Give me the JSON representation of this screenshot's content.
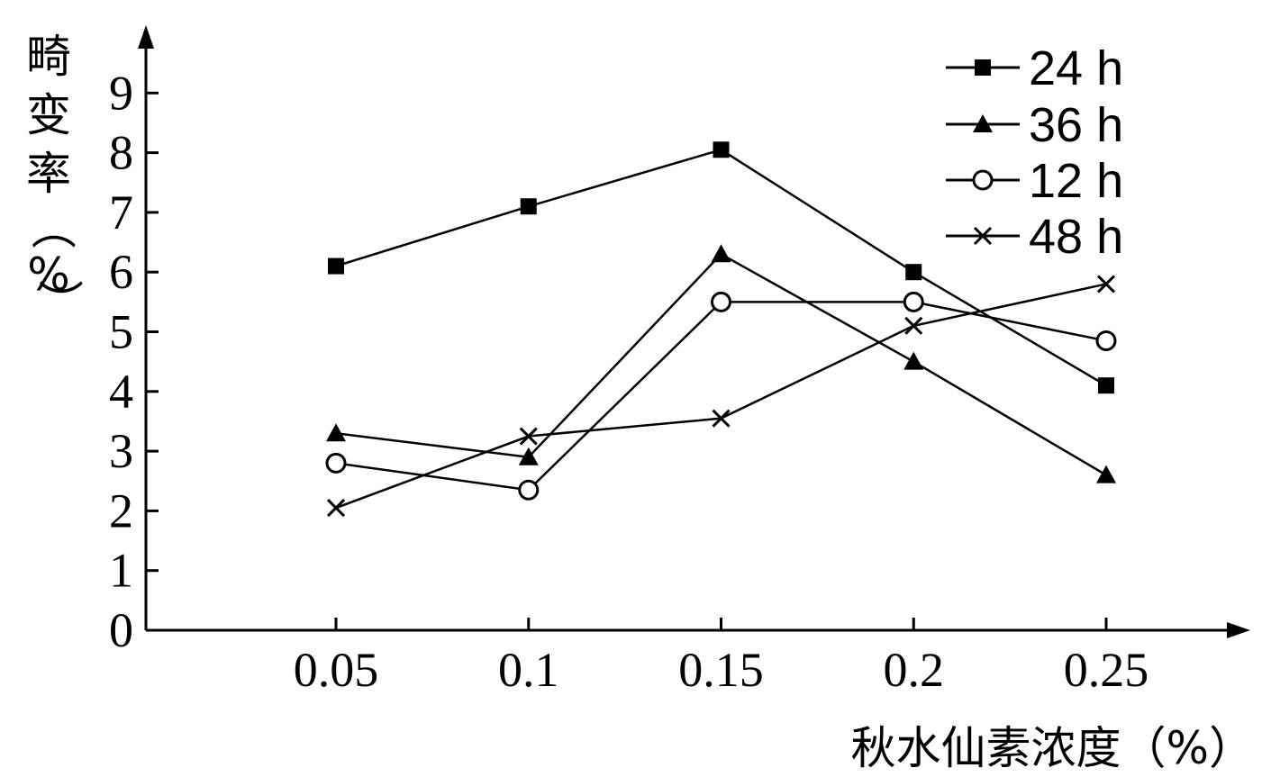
{
  "chart_data": {
    "type": "line",
    "title": "",
    "ylabel": "畸变率（%）",
    "ylabel_chars": [
      "畸",
      "变",
      "率",
      "（",
      "%",
      "）"
    ],
    "xlabel": "秋水仙素浓度（%）",
    "x": [
      0.05,
      0.1,
      0.15,
      0.2,
      0.25
    ],
    "x_tick_labels": [
      "0.05",
      "0.1",
      "0.15",
      "0.2",
      "0.25"
    ],
    "x_range": [
      0,
      0.28
    ],
    "ylim": [
      0,
      9.5
    ],
    "y_ticks": [
      0,
      1,
      2,
      3,
      4,
      5,
      6,
      7,
      8,
      9
    ],
    "grid": false,
    "legend_position": "top-right",
    "series": [
      {
        "name": "24 h",
        "marker": "filled-square",
        "values": [
          6.1,
          7.1,
          8.05,
          6.0,
          4.1
        ]
      },
      {
        "name": "36 h",
        "marker": "filled-triangle",
        "values": [
          3.3,
          2.9,
          6.3,
          4.5,
          2.6
        ]
      },
      {
        "name": "12 h",
        "marker": "open-circle",
        "values": [
          2.8,
          2.35,
          5.5,
          5.5,
          4.85
        ]
      },
      {
        "name": "48 h",
        "marker": "cross",
        "values": [
          2.05,
          3.25,
          3.55,
          5.1,
          5.8
        ]
      }
    ],
    "colors": {
      "line": "#000000",
      "background": "#ffffff"
    }
  }
}
